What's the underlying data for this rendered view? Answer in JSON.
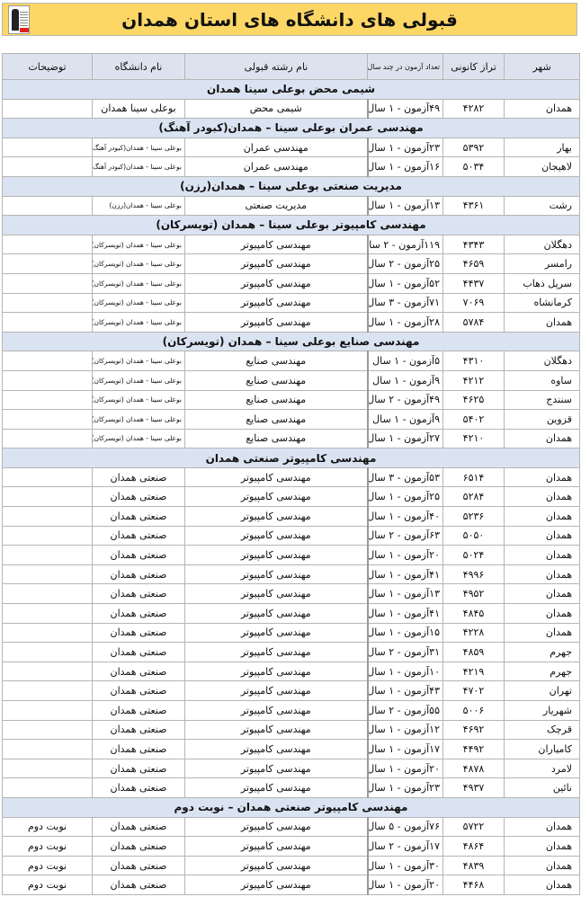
{
  "title": "قبولی های دانشگاه های استان همدان",
  "colors": {
    "banner": "#fdd766",
    "header_bg": "#dde3ee",
    "section_bg": "#dae3f1"
  },
  "columns": [
    "شهر",
    "تراز کانونی",
    "تعداد آزمون در چند سال",
    "نام رشته قبولی",
    "نام دانشگاه",
    "توضیحات"
  ],
  "sections": [
    {
      "title": "شیمی محض بوعلی سینا همدان",
      "rows": [
        [
          "همدان",
          "۴۲۸۲",
          "۴۹آزمون - ۱ سال",
          "شیمی محض",
          "بوعلی سینا همدان",
          ""
        ]
      ]
    },
    {
      "title": "مهندسی عمران بوعلی سینا – همدان(کبودر آهنگ)",
      "rows": [
        [
          "بهار",
          "۵۳۹۲",
          "۲۳آزمون - ۱ سال",
          "مهندسی عمران",
          "بوعلی سینا - همدان(کبودر آهنگ)",
          ""
        ],
        [
          "لاهیجان",
          "۵۰۳۴",
          "۱۶آزمون - ۱ سال",
          "مهندسی عمران",
          "بوعلی سینا - همدان(کبودر آهنگ)",
          ""
        ]
      ]
    },
    {
      "title": "مدیریت صنعتی بوعلی سینا – همدان(رزن)",
      "rows": [
        [
          "رشت",
          "۴۳۶۱",
          "۱۳آزمون - ۱ سال",
          "مدیریت صنعتی",
          "بوعلی سینا - همدان(رزن)",
          ""
        ]
      ]
    },
    {
      "title": "مهندسی کامپیوتر بوعلی سینا – همدان (تویسرکان)",
      "rows": [
        [
          "دهگلان",
          "۴۳۴۳",
          "۱۱۹آزمون - ۲ سال",
          "مهندسی کامپیوتر",
          "بوعلی سینا - همدان (تویسرکان)",
          ""
        ],
        [
          "رامسر",
          "۴۶۵۹",
          "۲۵آزمون - ۲ سال",
          "مهندسی کامپیوتر",
          "بوعلی سینا - همدان (تویسرکان)",
          ""
        ],
        [
          "سرپل ذهاب",
          "۴۴۳۷",
          "۵۲آزمون - ۱ سال",
          "مهندسی کامپیوتر",
          "بوعلی سینا - همدان (تویسرکان)",
          ""
        ],
        [
          "کرمانشاه",
          "۷۰۶۹",
          "۷۱آزمون - ۳ سال",
          "مهندسی کامپیوتر",
          "بوعلی سینا - همدان (تویسرکان)",
          ""
        ],
        [
          "همدان",
          "۵۷۸۴",
          "۲۸آزمون - ۱ سال",
          "مهندسی کامپیوتر",
          "بوعلی سینا - همدان (تویسرکان)",
          ""
        ]
      ]
    },
    {
      "title": "مهندسی صنایع بوعلی سینا – همدان (تویسرکان)",
      "rows": [
        [
          "دهگلان",
          "۴۳۱۰",
          "۵آزمون - ۱ سال",
          "مهندسی صنایع",
          "بوعلی سینا - همدان (تویسرکان)",
          ""
        ],
        [
          "ساوه",
          "۴۲۱۲",
          "۹آزمون - ۱ سال",
          "مهندسی صنایع",
          "بوعلی سینا - همدان (تویسرکان)",
          ""
        ],
        [
          "سنندج",
          "۴۶۲۵",
          "۴۹آزمون - ۲ سال",
          "مهندسی صنایع",
          "بوعلی سینا - همدان (تویسرکان)",
          ""
        ],
        [
          "قزوین",
          "۵۴۰۲",
          "۹آزمون - ۱ سال",
          "مهندسی صنایع",
          "بوعلی سینا - همدان (تویسرکان)",
          ""
        ],
        [
          "همدان",
          "۴۲۱۰",
          "۲۷آزمون - ۱ سال",
          "مهندسی صنایع",
          "بوعلی سینا - همدان (تویسرکان)",
          ""
        ]
      ]
    },
    {
      "title": "مهندسی کامپیوتر صنعتی همدان",
      "rows": [
        [
          "همدان",
          "۶۵۱۴",
          "۵۳آزمون - ۳ سال",
          "مهندسی کامپیوتر",
          "صنعتی همدان",
          ""
        ],
        [
          "همدان",
          "۵۲۸۴",
          "۲۵آزمون - ۱ سال",
          "مهندسی کامپیوتر",
          "صنعتی همدان",
          ""
        ],
        [
          "همدان",
          "۵۲۳۶",
          "۴۰آزمون - ۱ سال",
          "مهندسی کامپیوتر",
          "صنعتی همدان",
          ""
        ],
        [
          "همدان",
          "۵۰۵۰",
          "۶۳آزمون - ۲ سال",
          "مهندسی کامپیوتر",
          "صنعتی همدان",
          ""
        ],
        [
          "همدان",
          "۵۰۲۴",
          "۲۰آزمون - ۱ سال",
          "مهندسی کامپیوتر",
          "صنعتی همدان",
          ""
        ],
        [
          "همدان",
          "۴۹۹۶",
          "۴۱آزمون - ۱ سال",
          "مهندسی کامپیوتر",
          "صنعتی همدان",
          ""
        ],
        [
          "همدان",
          "۴۹۵۲",
          "۱۳آزمون - ۱ سال",
          "مهندسی کامپیوتر",
          "صنعتی همدان",
          ""
        ],
        [
          "همدان",
          "۴۸۴۵",
          "۴۱آزمون - ۱ سال",
          "مهندسی کامپیوتر",
          "صنعتی همدان",
          ""
        ],
        [
          "همدان",
          "۴۲۲۸",
          "۱۵آزمون - ۱ سال",
          "مهندسی کامپیوتر",
          "صنعتی همدان",
          ""
        ],
        [
          "جهرم",
          "۴۸۵۹",
          "۳۱آزمون - ۲ سال",
          "مهندسی کامپیوتر",
          "صنعتی همدان",
          ""
        ],
        [
          "جهرم",
          "۴۲۱۹",
          "۱۰آزمون - ۱ سال",
          "مهندسی کامپیوتر",
          "صنعتی همدان",
          ""
        ],
        [
          "تهران",
          "۴۷۰۲",
          "۴۳آزمون - ۱ سال",
          "مهندسی کامپیوتر",
          "صنعتی همدان",
          ""
        ],
        [
          "شهریار",
          "۵۰۰۶",
          "۵۵آزمون - ۲ سال",
          "مهندسی کامپیوتر",
          "صنعتی همدان",
          ""
        ],
        [
          "قرچک",
          "۴۶۹۲",
          "۱۲آزمون - ۱ سال",
          "مهندسی کامپیوتر",
          "صنعتی همدان",
          ""
        ],
        [
          "کامیاران",
          "۴۴۹۲",
          "۱۷آزمون - ۱ سال",
          "مهندسی کامپیوتر",
          "صنعتی همدان",
          ""
        ],
        [
          "لامرد",
          "۴۸۷۸",
          "۲۰آزمون - ۱ سال",
          "مهندسی کامپیوتر",
          "صنعتی همدان",
          ""
        ],
        [
          "نائین",
          "۴۹۳۷",
          "۲۳آزمون - ۱ سال",
          "مهندسی کامپیوتر",
          "صنعتی همدان",
          ""
        ]
      ]
    },
    {
      "title": "مهندسی کامپیوتر صنعتی همدان – نوبت دوم",
      "rows": [
        [
          "همدان",
          "۵۷۲۲",
          "۷۶آزمون - ۵ سال",
          "مهندسی کامپیوتر",
          "صنعتی همدان",
          "نوبت دوم"
        ],
        [
          "همدان",
          "۴۸۶۴",
          "۱۷آزمون - ۲ سال",
          "مهندسی کامپیوتر",
          "صنعتی همدان",
          "نوبت دوم"
        ],
        [
          "همدان",
          "۴۸۳۹",
          "۳۰آزمون - ۱ سال",
          "مهندسی کامپیوتر",
          "صنعتی همدان",
          "نوبت دوم"
        ],
        [
          "همدان",
          "۴۴۶۸",
          "۲۰آزمون - ۱ سال",
          "مهندسی کامپیوتر",
          "صنعتی همدان",
          "نوبت دوم"
        ]
      ]
    }
  ]
}
